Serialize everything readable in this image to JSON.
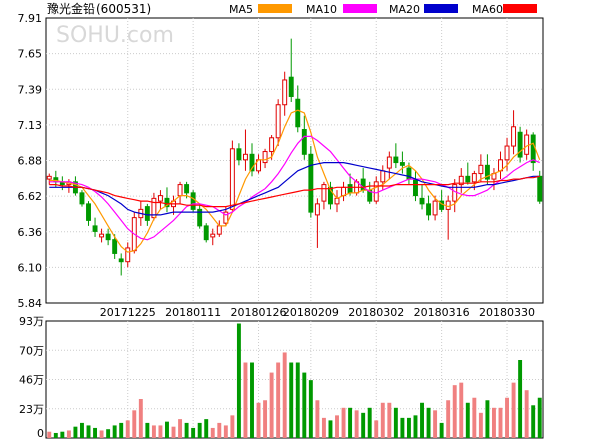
{
  "header": {
    "title": "豫光金铅",
    "code": "(600531)",
    "watermark": "SOHU.com"
  },
  "legend": [
    {
      "name": "MA5",
      "color": "#ff9900"
    },
    {
      "name": "MA10",
      "color": "#ff00ff"
    },
    {
      "name": "MA20",
      "color": "#0000cc"
    },
    {
      "name": "MA60",
      "color": "#ff0000"
    }
  ],
  "colors": {
    "up": "#e00000",
    "down": "#009900",
    "grid": "#cccccc",
    "frame": "#000000"
  },
  "chart_data": [
    {
      "type": "candlestick",
      "title": "",
      "ylim": [
        5.84,
        7.91
      ],
      "yticks": [
        "7.91",
        "7.65",
        "7.39",
        "7.13",
        "6.88",
        "6.62",
        "6.36",
        "6.10",
        "5.84"
      ],
      "xtick_labels": [
        {
          "index": 12,
          "label": "20171225"
        },
        {
          "index": 22,
          "label": "20180111"
        },
        {
          "index": 32,
          "label": "20180126"
        },
        {
          "index": 40,
          "label": "20180209"
        },
        {
          "index": 50,
          "label": "20180302"
        },
        {
          "index": 60,
          "label": "20180316"
        },
        {
          "index": 70,
          "label": "20180330"
        }
      ],
      "candles": [
        [
          6.74,
          6.78,
          6.7,
          6.76
        ],
        [
          6.75,
          6.8,
          6.68,
          6.72
        ],
        [
          6.72,
          6.76,
          6.66,
          6.7
        ],
        [
          6.7,
          6.74,
          6.64,
          6.72
        ],
        [
          6.72,
          6.76,
          6.62,
          6.64
        ],
        [
          6.64,
          6.66,
          6.54,
          6.56
        ],
        [
          6.56,
          6.58,
          6.4,
          6.44
        ],
        [
          6.4,
          6.46,
          6.32,
          6.36
        ],
        [
          6.32,
          6.38,
          6.28,
          6.34
        ],
        [
          6.34,
          6.38,
          6.26,
          6.3
        ],
        [
          6.3,
          6.34,
          6.16,
          6.2
        ],
        [
          6.16,
          6.2,
          6.04,
          6.14
        ],
        [
          6.14,
          6.28,
          6.1,
          6.24
        ],
        [
          6.22,
          6.5,
          6.2,
          6.46
        ],
        [
          6.46,
          6.58,
          6.4,
          6.52
        ],
        [
          6.54,
          6.56,
          6.4,
          6.44
        ],
        [
          6.46,
          6.64,
          6.44,
          6.6
        ],
        [
          6.58,
          6.66,
          6.52,
          6.62
        ],
        [
          6.6,
          6.68,
          6.5,
          6.54
        ],
        [
          6.54,
          6.62,
          6.48,
          6.58
        ],
        [
          6.62,
          6.72,
          6.56,
          6.7
        ],
        [
          6.7,
          6.72,
          6.6,
          6.64
        ],
        [
          6.64,
          6.66,
          6.5,
          6.52
        ],
        [
          6.52,
          6.56,
          6.38,
          6.4
        ],
        [
          6.4,
          6.42,
          6.28,
          6.3
        ],
        [
          6.32,
          6.38,
          6.26,
          6.34
        ],
        [
          6.34,
          6.44,
          6.32,
          6.4
        ],
        [
          6.42,
          6.54,
          6.4,
          6.5
        ],
        [
          6.52,
          7.02,
          6.5,
          6.96
        ],
        [
          6.96,
          7.0,
          6.84,
          6.88
        ],
        [
          6.88,
          7.1,
          6.8,
          6.92
        ],
        [
          6.92,
          7.0,
          6.76,
          6.8
        ],
        [
          6.8,
          6.92,
          6.78,
          6.88
        ],
        [
          6.86,
          6.96,
          6.82,
          6.94
        ],
        [
          6.94,
          7.06,
          6.88,
          7.04
        ],
        [
          7.04,
          7.32,
          6.98,
          7.28
        ],
        [
          7.28,
          7.52,
          7.2,
          7.46
        ],
        [
          7.48,
          7.76,
          7.3,
          7.34
        ],
        [
          7.32,
          7.42,
          7.08,
          7.12
        ],
        [
          7.1,
          7.2,
          6.88,
          6.92
        ],
        [
          6.92,
          6.98,
          6.46,
          6.5
        ],
        [
          6.48,
          6.6,
          6.24,
          6.56
        ],
        [
          6.58,
          6.72,
          6.52,
          6.7
        ],
        [
          6.68,
          6.72,
          6.52,
          6.56
        ],
        [
          6.56,
          6.66,
          6.5,
          6.6
        ],
        [
          6.62,
          6.72,
          6.58,
          6.68
        ],
        [
          6.7,
          6.78,
          6.62,
          6.64
        ],
        [
          6.64,
          6.74,
          6.62,
          6.72
        ],
        [
          6.74,
          6.82,
          6.64,
          6.66
        ],
        [
          6.66,
          6.72,
          6.56,
          6.58
        ],
        [
          6.58,
          6.76,
          6.56,
          6.72
        ],
        [
          6.72,
          6.84,
          6.66,
          6.8
        ],
        [
          6.82,
          6.94,
          6.74,
          6.9
        ],
        [
          6.9,
          7.0,
          6.82,
          6.86
        ],
        [
          6.86,
          6.94,
          6.78,
          6.84
        ],
        [
          6.82,
          6.86,
          6.7,
          6.74
        ],
        [
          6.74,
          6.8,
          6.58,
          6.62
        ],
        [
          6.6,
          6.7,
          6.52,
          6.56
        ],
        [
          6.56,
          6.62,
          6.44,
          6.48
        ],
        [
          6.48,
          6.62,
          6.44,
          6.58
        ],
        [
          6.58,
          6.66,
          6.5,
          6.52
        ],
        [
          6.52,
          6.62,
          6.3,
          6.58
        ],
        [
          6.58,
          6.74,
          6.5,
          6.7
        ],
        [
          6.7,
          6.82,
          6.64,
          6.76
        ],
        [
          6.76,
          6.86,
          6.7,
          6.72
        ],
        [
          6.72,
          6.8,
          6.66,
          6.78
        ],
        [
          6.78,
          6.92,
          6.72,
          6.84
        ],
        [
          6.84,
          6.92,
          6.7,
          6.74
        ],
        [
          6.74,
          6.82,
          6.66,
          6.78
        ],
        [
          6.8,
          6.94,
          6.74,
          6.88
        ],
        [
          6.88,
          7.04,
          6.8,
          6.98
        ],
        [
          6.98,
          7.24,
          6.92,
          7.12
        ],
        [
          7.08,
          7.12,
          6.86,
          6.9
        ],
        [
          6.92,
          7.1,
          6.88,
          7.06
        ],
        [
          7.06,
          7.08,
          6.8,
          6.86
        ],
        [
          6.76,
          6.8,
          6.56,
          6.58
        ]
      ],
      "ma_series": [
        {
          "key": "MA5",
          "values": [
            6.73,
            6.73,
            6.72,
            6.71,
            6.7,
            6.68,
            6.62,
            6.56,
            6.48,
            6.4,
            6.32,
            6.25,
            6.21,
            6.22,
            6.27,
            6.35,
            6.45,
            6.52,
            6.55,
            6.58,
            6.62,
            6.62,
            6.6,
            6.56,
            6.52,
            6.46,
            6.4,
            6.4,
            6.5,
            6.62,
            6.74,
            6.82,
            6.88,
            6.88,
            6.9,
            7.0,
            7.12,
            7.22,
            7.24,
            7.22,
            7.08,
            6.9,
            6.78,
            6.66,
            6.6,
            6.62,
            6.64,
            6.64,
            6.66,
            6.66,
            6.68,
            6.7,
            6.74,
            6.78,
            6.82,
            6.84,
            6.8,
            6.74,
            6.66,
            6.6,
            6.56,
            6.54,
            6.56,
            6.62,
            6.66,
            6.7,
            6.74,
            6.76,
            6.78,
            6.8,
            6.84,
            6.9,
            6.94,
            6.98,
            7.0,
            6.88
          ]
        },
        {
          "key": "MA10",
          "values": [
            6.72,
            6.72,
            6.72,
            6.72,
            6.71,
            6.7,
            6.68,
            6.65,
            6.61,
            6.56,
            6.5,
            6.44,
            6.38,
            6.34,
            6.31,
            6.3,
            6.32,
            6.36,
            6.4,
            6.44,
            6.49,
            6.54,
            6.56,
            6.56,
            6.55,
            6.54,
            6.51,
            6.48,
            6.5,
            6.54,
            6.57,
            6.61,
            6.64,
            6.67,
            6.72,
            6.78,
            6.85,
            6.93,
            7.0,
            7.05,
            7.05,
            7.02,
            6.98,
            6.94,
            6.88,
            6.82,
            6.76,
            6.72,
            6.68,
            6.65,
            6.64,
            6.66,
            6.68,
            6.7,
            6.72,
            6.74,
            6.74,
            6.74,
            6.73,
            6.72,
            6.7,
            6.68,
            6.65,
            6.63,
            6.62,
            6.62,
            6.64,
            6.66,
            6.7,
            6.73,
            6.76,
            6.8,
            6.83,
            6.86,
            6.88,
            6.86
          ]
        },
        {
          "key": "MA20",
          "values": [
            6.68,
            6.68,
            6.68,
            6.68,
            6.68,
            6.68,
            6.67,
            6.66,
            6.64,
            6.62,
            6.59,
            6.56,
            6.52,
            6.5,
            6.49,
            6.48,
            6.48,
            6.48,
            6.49,
            6.5,
            6.5,
            6.5,
            6.5,
            6.5,
            6.5,
            6.5,
            6.51,
            6.52,
            6.54,
            6.56,
            6.58,
            6.6,
            6.62,
            6.64,
            6.66,
            6.68,
            6.72,
            6.76,
            6.8,
            6.82,
            6.84,
            6.85,
            6.86,
            6.86,
            6.86,
            6.86,
            6.85,
            6.84,
            6.83,
            6.82,
            6.81,
            6.8,
            6.79,
            6.78,
            6.77,
            6.76,
            6.74,
            6.72,
            6.71,
            6.7,
            6.69,
            6.68,
            6.68,
            6.68,
            6.68,
            6.68,
            6.69,
            6.7,
            6.7,
            6.71,
            6.72,
            6.73,
            6.74,
            6.75,
            6.76,
            6.76
          ]
        },
        {
          "key": "MA60",
          "values": [
            6.7,
            6.7,
            6.69,
            6.69,
            6.68,
            6.68,
            6.67,
            6.66,
            6.65,
            6.64,
            6.62,
            6.61,
            6.6,
            6.59,
            6.58,
            6.58,
            6.57,
            6.57,
            6.56,
            6.56,
            6.56,
            6.55,
            6.55,
            6.55,
            6.54,
            6.54,
            6.54,
            6.54,
            6.55,
            6.56,
            6.57,
            6.58,
            6.59,
            6.6,
            6.61,
            6.62,
            6.63,
            6.64,
            6.65,
            6.66,
            6.66,
            6.67,
            6.67,
            6.67,
            6.68,
            6.68,
            6.68,
            6.68,
            6.68,
            6.69,
            6.69,
            6.69,
            6.69,
            6.7,
            6.7,
            6.7,
            6.7,
            6.7,
            6.7,
            6.7,
            6.7,
            6.7,
            6.71,
            6.71,
            6.71,
            6.71,
            6.72,
            6.72,
            6.72,
            6.73,
            6.73,
            6.74,
            6.74,
            6.75,
            6.75,
            6.76
          ]
        }
      ]
    },
    {
      "type": "bar",
      "title": "",
      "ylabel": "",
      "ylim": [
        0,
        93
      ],
      "yticks": [
        "93万",
        "70万",
        "46万",
        "23万",
        "0"
      ],
      "values": [
        5,
        4,
        5,
        6,
        9,
        12,
        10,
        8,
        6,
        7,
        10,
        12,
        14,
        22,
        31,
        12,
        10,
        10,
        13,
        9,
        15,
        12,
        8,
        12,
        15,
        8,
        12,
        10,
        18,
        91,
        60,
        60,
        28,
        30,
        52,
        60,
        68,
        60,
        60,
        52,
        46,
        30,
        16,
        14,
        18,
        24,
        24,
        22,
        20,
        24,
        14,
        28,
        28,
        24,
        16,
        16,
        18,
        28,
        24,
        22,
        12,
        30,
        42,
        44,
        28,
        32,
        20,
        30,
        24,
        24,
        32,
        44,
        62,
        38,
        26,
        32
      ]
    }
  ]
}
